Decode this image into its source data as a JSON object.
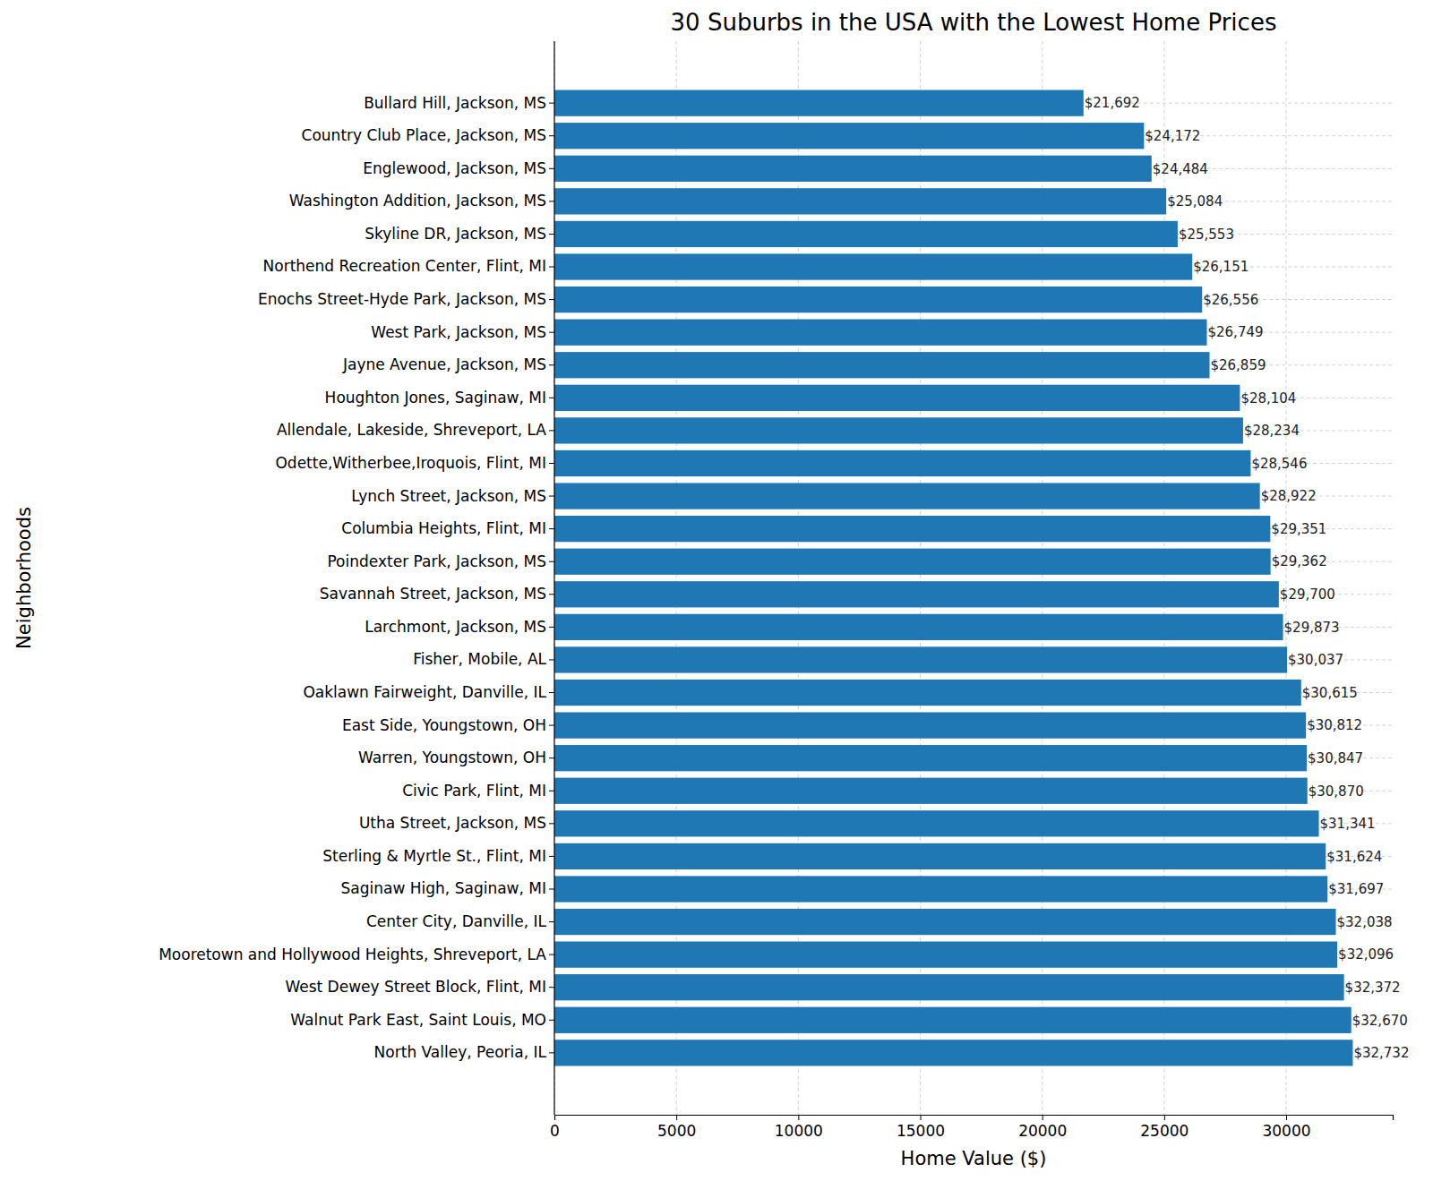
{
  "chart_data": {
    "type": "bar",
    "orientation": "horizontal",
    "title": "30 Suburbs in the USA with the Lowest Home Prices",
    "x_label": "Home Value ($)",
    "y_label": "Neighborhoods",
    "categories": [
      "Bullard Hill, Jackson, MS",
      "Country Club Place, Jackson, MS",
      "Englewood, Jackson, MS",
      "Washington Addition, Jackson, MS",
      "Skyline DR, Jackson, MS",
      "Northend Recreation Center, Flint, MI",
      "Enochs Street-Hyde Park, Jackson, MS",
      "West Park, Jackson, MS",
      "Jayne Avenue, Jackson, MS",
      "Houghton Jones, Saginaw, MI",
      "Allendale, Lakeside, Shreveport, LA",
      "Odette,Witherbee,Iroquois, Flint, MI",
      "Lynch Street, Jackson, MS",
      "Columbia Heights, Flint, MI",
      "Poindexter Park, Jackson, MS",
      "Savannah Street, Jackson, MS",
      "Larchmont, Jackson, MS",
      "Fisher, Mobile, AL",
      "Oaklawn Fairweight, Danville, IL",
      "East Side, Youngstown, OH",
      "Warren, Youngstown, OH",
      "Civic Park, Flint, MI",
      "Utha Street, Jackson, MS",
      "Sterling & Myrtle St., Flint, MI",
      "Saginaw High, Saginaw, MI",
      "Center City, Danville, IL",
      "Mooretown and Hollywood Heights, Shreveport, LA",
      "West Dewey Street Block, Flint, MI",
      "Walnut Park East, Saint Louis, MO",
      "North Valley, Peoria, IL"
    ],
    "values": [
      21692,
      24172,
      24484,
      25084,
      25553,
      26151,
      26556,
      26749,
      26859,
      28104,
      28234,
      28546,
      28922,
      29351,
      29362,
      29700,
      29873,
      30037,
      30615,
      30812,
      30847,
      30870,
      31341,
      31624,
      31697,
      32038,
      32096,
      32372,
      32670,
      32732
    ],
    "value_labels": [
      "$21,692",
      "$24,172",
      "$24,484",
      "$25,084",
      "$25,553",
      "$26,151",
      "$26,556",
      "$26,749",
      "$26,859",
      "$28,104",
      "$28,234",
      "$28,546",
      "$28,922",
      "$29,351",
      "$29,362",
      "$29,700",
      "$29,873",
      "$30,037",
      "$30,615",
      "$30,812",
      "$30,847",
      "$30,870",
      "$31,341",
      "$31,624",
      "$31,697",
      "$32,038",
      "$32,096",
      "$32,372",
      "$32,670",
      "$32,732"
    ],
    "color": "#1f77b4",
    "xlim": [
      0,
      34368.6
    ],
    "xticks": [
      0,
      5000,
      10000,
      15000,
      20000,
      25000,
      30000
    ],
    "grid": true,
    "data_labels": true
  }
}
